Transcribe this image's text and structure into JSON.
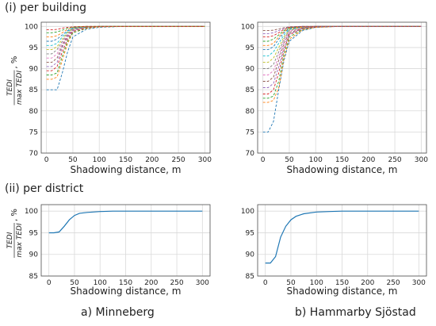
{
  "sections": {
    "top_title": "(i) per building",
    "bottom_title": "(ii) per district"
  },
  "captions": {
    "left": "a) Minneberg",
    "right": "b) Hammarby Sjöstad"
  },
  "colors": {
    "district_line": "#1f77b4",
    "grid": "#d9d9d9",
    "axis": "#4d4d4d",
    "palette": [
      "#1f77b4",
      "#ff7f0e",
      "#2ca02c",
      "#d62728",
      "#9467bd",
      "#8c564b",
      "#e377c2",
      "#7f7f7f",
      "#bcbd22",
      "#17becf"
    ]
  },
  "chart_data": [
    {
      "id": "building-minneberg",
      "type": "line",
      "line_style": "dashed",
      "xlabel": "Shadowing distance, m",
      "ylabel": "TEDI / max TEDI, %",
      "xlim": [
        -10,
        310
      ],
      "ylim": [
        70,
        101
      ],
      "xticks": [
        0,
        50,
        100,
        150,
        200,
        250,
        300
      ],
      "yticks": [
        70,
        75,
        80,
        85,
        90,
        95,
        100
      ],
      "grid": true,
      "x": [
        0,
        10,
        20,
        30,
        40,
        50,
        75,
        100,
        150,
        200,
        250,
        300
      ],
      "series": [
        {
          "values": [
            85.0,
            85.0,
            85.0,
            89.0,
            94.0,
            97.5,
            99.3,
            99.8,
            100,
            100,
            100,
            100
          ]
        },
        {
          "values": [
            87.5,
            87.5,
            88.0,
            92.0,
            96.0,
            98.5,
            99.5,
            99.9,
            100,
            100,
            100,
            100
          ]
        },
        {
          "values": [
            88.5,
            88.5,
            89.0,
            93.0,
            96.5,
            98.5,
            99.6,
            100,
            100,
            100,
            100,
            100
          ]
        },
        {
          "values": [
            89.5,
            89.5,
            90.5,
            94.0,
            97.0,
            98.8,
            99.7,
            100,
            100,
            100,
            100,
            100
          ]
        },
        {
          "values": [
            90.5,
            90.5,
            91.5,
            95.0,
            97.5,
            99.0,
            99.8,
            100,
            100,
            100,
            100,
            100
          ]
        },
        {
          "values": [
            91.5,
            91.5,
            92.5,
            95.5,
            97.8,
            99.2,
            99.8,
            100,
            100,
            100,
            100,
            100
          ]
        },
        {
          "values": [
            92.5,
            92.5,
            93.5,
            96.0,
            98.0,
            99.3,
            99.9,
            100,
            100,
            100,
            100,
            100
          ]
        },
        {
          "values": [
            93.5,
            93.5,
            94.5,
            96.5,
            98.3,
            99.4,
            99.9,
            100,
            100,
            100,
            100,
            100
          ]
        },
        {
          "values": [
            94.5,
            94.5,
            95.2,
            97.0,
            98.6,
            99.5,
            99.9,
            100,
            100,
            100,
            100,
            100
          ]
        },
        {
          "values": [
            95.5,
            95.5,
            96.0,
            97.5,
            98.8,
            99.6,
            99.9,
            100,
            100,
            100,
            100,
            100
          ]
        },
        {
          "values": [
            96.5,
            96.5,
            97.0,
            98.0,
            99.0,
            99.7,
            100,
            100,
            100,
            100,
            100,
            100
          ]
        },
        {
          "values": [
            97.5,
            97.5,
            97.8,
            98.5,
            99.3,
            99.8,
            100,
            100,
            100,
            100,
            100,
            100
          ]
        },
        {
          "values": [
            98.5,
            98.5,
            98.7,
            99.1,
            99.6,
            99.9,
            100,
            100,
            100,
            100,
            100,
            100
          ]
        },
        {
          "values": [
            99.2,
            99.2,
            99.3,
            99.6,
            99.8,
            99.9,
            100,
            100,
            100,
            100,
            100,
            100
          ]
        }
      ]
    },
    {
      "id": "building-hammarby",
      "type": "line",
      "line_style": "dashed",
      "xlabel": "Shadowing distance, m",
      "ylabel": "",
      "xlim": [
        -10,
        310
      ],
      "ylim": [
        70,
        101
      ],
      "xticks": [
        0,
        50,
        100,
        150,
        200,
        250,
        300
      ],
      "yticks": [
        70,
        75,
        80,
        85,
        90,
        95,
        100
      ],
      "grid": true,
      "x": [
        0,
        10,
        20,
        30,
        40,
        50,
        75,
        100,
        150,
        200,
        250,
        300
      ],
      "series": [
        {
          "values": [
            75.0,
            75.0,
            77.5,
            85.0,
            92.0,
            96.5,
            99.0,
            99.8,
            100,
            100,
            100,
            100
          ]
        },
        {
          "values": [
            82.0,
            82.0,
            82.5,
            85.5,
            92.5,
            97.0,
            99.2,
            99.8,
            100,
            100,
            100,
            100
          ]
        },
        {
          "values": [
            83.0,
            83.0,
            83.5,
            87.0,
            93.5,
            97.5,
            99.3,
            99.9,
            100,
            100,
            100,
            100
          ]
        },
        {
          "values": [
            84.0,
            84.0,
            85.0,
            89.0,
            94.5,
            98.0,
            99.5,
            99.9,
            100,
            100,
            100,
            100
          ]
        },
        {
          "values": [
            85.5,
            85.5,
            86.5,
            90.5,
            95.0,
            98.2,
            99.5,
            100,
            100,
            100,
            100,
            100
          ]
        },
        {
          "values": [
            87.0,
            87.0,
            88.0,
            92.0,
            96.0,
            98.5,
            99.6,
            100,
            100,
            100,
            100,
            100
          ]
        },
        {
          "values": [
            88.5,
            88.5,
            89.5,
            93.0,
            96.5,
            98.8,
            99.7,
            100,
            100,
            100,
            100,
            100
          ]
        },
        {
          "values": [
            90.0,
            90.0,
            91.0,
            94.0,
            97.0,
            99.0,
            99.8,
            100,
            100,
            100,
            100,
            100
          ]
        },
        {
          "values": [
            91.5,
            91.5,
            92.5,
            95.0,
            97.5,
            99.2,
            99.8,
            100,
            100,
            100,
            100,
            100
          ]
        },
        {
          "values": [
            93.0,
            93.0,
            94.0,
            96.0,
            98.0,
            99.3,
            99.9,
            100,
            100,
            100,
            100,
            100
          ]
        },
        {
          "values": [
            94.5,
            94.5,
            95.2,
            97.0,
            98.5,
            99.5,
            99.9,
            100,
            100,
            100,
            100,
            100
          ]
        },
        {
          "values": [
            95.5,
            95.5,
            96.0,
            97.5,
            98.8,
            99.6,
            99.9,
            100,
            100,
            100,
            100,
            100
          ]
        },
        {
          "values": [
            96.5,
            96.5,
            97.0,
            98.0,
            99.0,
            99.7,
            100,
            100,
            100,
            100,
            100,
            100
          ]
        },
        {
          "values": [
            97.5,
            97.5,
            97.8,
            98.5,
            99.3,
            99.8,
            100,
            100,
            100,
            100,
            100,
            100
          ]
        },
        {
          "values": [
            98.3,
            98.3,
            98.5,
            99.0,
            99.5,
            99.9,
            100,
            100,
            100,
            100,
            100,
            100
          ]
        },
        {
          "values": [
            99.0,
            99.0,
            99.1,
            99.4,
            99.7,
            99.9,
            100,
            100,
            100,
            100,
            100,
            100
          ]
        }
      ]
    },
    {
      "id": "district-minneberg",
      "type": "line",
      "line_style": "solid",
      "xlabel": "Shadowing distance, m",
      "ylabel": "TEDI / max TEDI, %",
      "xlim": [
        -15,
        315
      ],
      "ylim": [
        85,
        101.5
      ],
      "xticks": [
        0,
        50,
        100,
        150,
        200,
        250,
        300
      ],
      "yticks": [
        85,
        90,
        95,
        100
      ],
      "grid": true,
      "x": [
        0,
        10,
        20,
        30,
        40,
        50,
        60,
        75,
        100,
        125,
        150,
        200,
        250,
        300
      ],
      "series": [
        {
          "values": [
            95.0,
            95.0,
            95.2,
            96.5,
            98.0,
            99.0,
            99.5,
            99.7,
            99.9,
            100,
            100,
            100,
            100,
            100
          ]
        }
      ]
    },
    {
      "id": "district-hammarby",
      "type": "line",
      "line_style": "solid",
      "xlabel": "Shadowing distance, m",
      "ylabel": "",
      "xlim": [
        -15,
        315
      ],
      "ylim": [
        85,
        101.5
      ],
      "xticks": [
        0,
        50,
        100,
        150,
        200,
        250,
        300
      ],
      "yticks": [
        85,
        90,
        95,
        100
      ],
      "grid": true,
      "x": [
        0,
        10,
        20,
        30,
        40,
        50,
        60,
        75,
        100,
        125,
        150,
        200,
        250,
        300
      ],
      "series": [
        {
          "values": [
            88.0,
            88.0,
            89.5,
            94.0,
            96.5,
            98.0,
            98.8,
            99.4,
            99.8,
            99.9,
            100,
            100,
            100,
            100
          ]
        }
      ]
    }
  ]
}
